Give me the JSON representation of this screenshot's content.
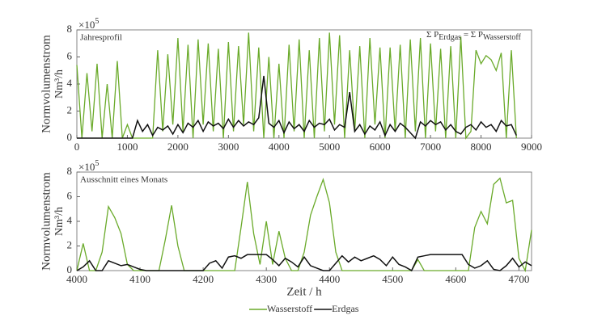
{
  "chart_data": [
    {
      "type": "line",
      "annotation": "Jahresprofil",
      "formula": [
        "Σ P",
        "Erdgas",
        " = Σ P",
        "Wasserstoff"
      ],
      "ylabel": "Normvolumenstrom",
      "yunit": "Nm³/h",
      "y_multiplier": [
        "×10",
        "5"
      ],
      "x": [
        0,
        100,
        200,
        300,
        400,
        500,
        600,
        700,
        800,
        900,
        1000,
        1100,
        1200,
        1300,
        1400,
        1500,
        1600,
        1700,
        1800,
        1900,
        2000,
        2100,
        2200,
        2300,
        2400,
        2500,
        2600,
        2700,
        2800,
        2900,
        3000,
        3100,
        3200,
        3300,
        3400,
        3500,
        3600,
        3700,
        3800,
        3900,
        4000,
        4100,
        4200,
        4300,
        4400,
        4500,
        4600,
        4700,
        4800,
        4900,
        5000,
        5100,
        5200,
        5300,
        5400,
        5500,
        5600,
        5700,
        5800,
        5900,
        6000,
        6100,
        6200,
        6300,
        6400,
        6500,
        6600,
        6700,
        6800,
        6900,
        7000,
        7100,
        7200,
        7300,
        7400,
        7500,
        7600,
        7700,
        7800,
        7900,
        8000,
        8100,
        8200,
        8300,
        8400,
        8500,
        8600,
        8700
      ],
      "series": [
        {
          "color": "#6aaa2a",
          "values": [
            5.4,
            0,
            4.8,
            0.5,
            5.5,
            0,
            4,
            0,
            5.7,
            0,
            1,
            0,
            0,
            0,
            0,
            0,
            6.5,
            0.5,
            6.2,
            1,
            7.4,
            0.5,
            6.9,
            0,
            7.3,
            1,
            7.0,
            0.5,
            6.6,
            0,
            7.1,
            0.5,
            6.8,
            1,
            7.8,
            0.5,
            6.7,
            0,
            6.0,
            0,
            5.5,
            0,
            6.9,
            0.5,
            7.3,
            0,
            6.5,
            0,
            7.4,
            0.5,
            7.8,
            1,
            7.6,
            0,
            6.5,
            0.5,
            6.8,
            0,
            7.4,
            1,
            6.7,
            0,
            6.7,
            0.5,
            6.9,
            0,
            7.3,
            0.5,
            7.4,
            0,
            7.0,
            0.5,
            6.6,
            0,
            6.8,
            0,
            7.5,
            0,
            0.5,
            6.5,
            5.5,
            6.1,
            5.8,
            5,
            6.3,
            0,
            6.5,
            0
          ]
        },
        {
          "color": "#111111",
          "values": [
            0,
            0,
            0,
            0,
            0,
            0,
            0,
            0,
            0,
            0,
            0,
            0,
            1.3,
            0.5,
            1.0,
            0.2,
            0.8,
            0.6,
            0.9,
            0.3,
            1.0,
            0.4,
            1.1,
            0.8,
            1.3,
            0.5,
            1.2,
            0.9,
            1.1,
            0.7,
            1.4,
            0.8,
            1.3,
            0.9,
            1.2,
            1.0,
            1.5,
            4.6,
            1.1,
            0.8,
            1.3,
            0.4,
            1.2,
            0.7,
            1.0,
            0.5,
            1.3,
            0.8,
            1.1,
            1.0,
            1.4,
            0.6,
            1.0,
            0.8,
            3.4,
            0.5,
            1.0,
            0.3,
            0.9,
            0.6,
            1.2,
            0.2,
            1.0,
            0.5,
            1.1,
            0.8,
            0.4,
            0.0,
            1.2,
            0.9,
            1.3,
            1.0,
            1.2,
            0.6,
            1.0,
            0.5,
            0.3,
            0.8,
            1.0,
            0.6,
            1.2,
            0.8,
            1.0,
            0.5,
            1.3,
            0.9,
            1.0,
            0.2
          ]
        }
      ],
      "xlim": [
        0,
        9000
      ],
      "xticks": [
        0,
        1000,
        2000,
        3000,
        4000,
        5000,
        6000,
        7000,
        8000,
        9000
      ],
      "ylim": [
        0,
        8
      ],
      "yticks": [
        0,
        2,
        4,
        6,
        8
      ]
    },
    {
      "type": "line",
      "annotation": "Ausschnitt eines Monats",
      "ylabel": "Normvolumenstrom",
      "yunit": "Nm³/h",
      "y_multiplier": [
        "×10",
        "5"
      ],
      "xlabel": "Zeit / h",
      "x": [
        4000,
        4010,
        4020,
        4030,
        4040,
        4050,
        4060,
        4070,
        4080,
        4090,
        4100,
        4110,
        4120,
        4130,
        4140,
        4150,
        4160,
        4170,
        4180,
        4190,
        4200,
        4210,
        4220,
        4230,
        4240,
        4250,
        4260,
        4270,
        4280,
        4290,
        4300,
        4310,
        4320,
        4330,
        4340,
        4350,
        4360,
        4370,
        4380,
        4390,
        4400,
        4410,
        4420,
        4430,
        4440,
        4450,
        4460,
        4470,
        4480,
        4490,
        4500,
        4510,
        4520,
        4530,
        4540,
        4550,
        4560,
        4570,
        4580,
        4590,
        4600,
        4610,
        4620,
        4630,
        4640,
        4650,
        4660,
        4670,
        4680,
        4690,
        4700,
        4710,
        4720
      ],
      "series": [
        {
          "name": "Wasserstoff",
          "color": "#6aaa2a",
          "values": [
            0,
            2.2,
            0,
            0,
            1.5,
            5.2,
            4.3,
            3.0,
            0.5,
            0,
            0,
            0,
            0,
            0,
            2.5,
            5.3,
            2.0,
            0,
            0,
            0,
            0,
            0,
            0,
            0,
            0,
            0,
            3.5,
            7.2,
            3,
            0.5,
            4.0,
            0.5,
            3.2,
            1,
            0,
            0,
            1.5,
            4.5,
            6.0,
            7.4,
            5.5,
            1.5,
            0,
            0,
            0,
            0,
            0,
            0,
            0,
            0,
            0,
            0,
            0,
            0,
            0.9,
            0,
            0,
            0,
            0,
            0,
            0,
            0,
            0,
            3.5,
            4.8,
            3.8,
            7.0,
            7.5,
            5.5,
            5.7,
            1.0,
            0,
            3.3
          ]
        },
        {
          "name": "Erdgas",
          "color": "#111111",
          "values": [
            0,
            0.3,
            0.8,
            0,
            0,
            0.8,
            0.6,
            0.4,
            0.5,
            0.3,
            0.1,
            0,
            0,
            0,
            0,
            0,
            0,
            0,
            0,
            0,
            0,
            0.6,
            0.8,
            0.2,
            1.1,
            1.2,
            1.0,
            1.3,
            1.3,
            1.3,
            1.3,
            0.9,
            0.4,
            1.0,
            0.7,
            0.3,
            1.1,
            0.4,
            0.2,
            0,
            0,
            0.6,
            1.2,
            0.7,
            1.1,
            0.8,
            1.0,
            1.2,
            0.9,
            0.4,
            1.1,
            0.5,
            0.3,
            0,
            1.1,
            1.2,
            1.3,
            1.3,
            1.3,
            1.3,
            1.3,
            1.3,
            0.5,
            0.2,
            0.4,
            0.8,
            0.1,
            0,
            0.4,
            1.0,
            0.3,
            0.7,
            0.4
          ]
        }
      ],
      "xlim": [
        4000,
        4720
      ],
      "xticks": [
        4000,
        4100,
        4200,
        4300,
        4400,
        4500,
        4600,
        4700
      ],
      "ylim": [
        0,
        8
      ],
      "yticks": [
        0,
        2,
        4,
        6,
        8
      ]
    }
  ]
}
